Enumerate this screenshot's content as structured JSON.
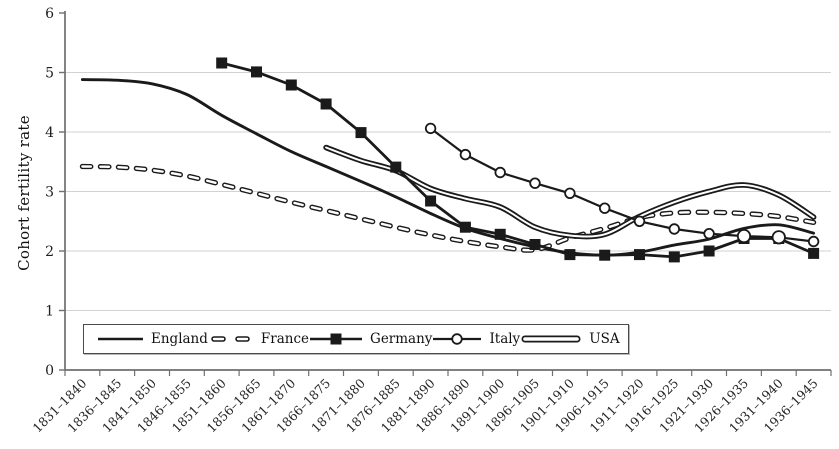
{
  "colors": {
    "line": "#1a1a1a",
    "grid": "#d2d2d2",
    "axis": "#6f6f6f",
    "text": "#262626",
    "background": "#ffffff",
    "marker_fill": "#ffffff"
  },
  "y_axis": {
    "title": "Cohort fertility rate"
  },
  "chart_data": {
    "type": "line",
    "title": "",
    "xlabel": "",
    "ylabel": "Cohort fertility rate",
    "ylim": [
      0,
      6
    ],
    "yticks": [
      0,
      1,
      2,
      3,
      4,
      5,
      6
    ],
    "grid": "horizontal",
    "legend_position": "inside-bottom-left",
    "categories": [
      "1831–1840",
      "1836–1845",
      "1841–1850",
      "1846–1855",
      "1851–1860",
      "1856–1865",
      "1861–1870",
      "1866–1875",
      "1871–1880",
      "1876–1885",
      "1881–1890",
      "1886–1890",
      "1891–1900",
      "1896–1905",
      "1901–1910",
      "1906–1915",
      "1911–1920",
      "1916–1925",
      "1921–1930",
      "1926–1935",
      "1931–1940",
      "1936–1945"
    ],
    "series": [
      {
        "name": "England",
        "style": "solid-line",
        "start_index": 0,
        "values": [
          4.88,
          4.87,
          4.81,
          4.63,
          4.28,
          3.97,
          3.67,
          3.42,
          3.17,
          2.91,
          2.63,
          2.38,
          2.21,
          2.07,
          1.97,
          1.93,
          1.98,
          2.1,
          2.2,
          2.38,
          2.44,
          2.3
        ]
      },
      {
        "name": "France",
        "style": "hollow-dash-line",
        "start_index": 0,
        "values": [
          3.42,
          3.41,
          3.36,
          3.26,
          3.12,
          2.97,
          2.82,
          2.68,
          2.54,
          2.4,
          2.27,
          2.16,
          2.07,
          2.02,
          2.22,
          2.38,
          2.56,
          2.64,
          2.65,
          2.63,
          2.58,
          2.48
        ]
      },
      {
        "name": "Germany",
        "style": "line-filled-square-markers",
        "start_index": 4,
        "values": [
          5.16,
          5.01,
          4.79,
          4.47,
          3.99,
          3.41,
          2.84,
          2.4,
          2.28,
          2.11,
          1.94,
          1.93,
          1.94,
          1.9,
          2.0,
          2.21,
          2.21,
          1.96
        ]
      },
      {
        "name": "Italy",
        "style": "line-open-circle-markers",
        "start_index": 10,
        "values": [
          4.06,
          3.62,
          3.32,
          3.14,
          2.97,
          2.72,
          2.5,
          2.37,
          2.29,
          2.25,
          2.23,
          2.16
        ]
      },
      {
        "name": "USA",
        "style": "double-outline-line",
        "start_index": 7,
        "values": [
          3.74,
          3.52,
          3.35,
          3.05,
          2.88,
          2.74,
          2.4,
          2.26,
          2.28,
          2.58,
          2.82,
          3.0,
          3.11,
          2.94,
          2.57
        ]
      }
    ]
  }
}
